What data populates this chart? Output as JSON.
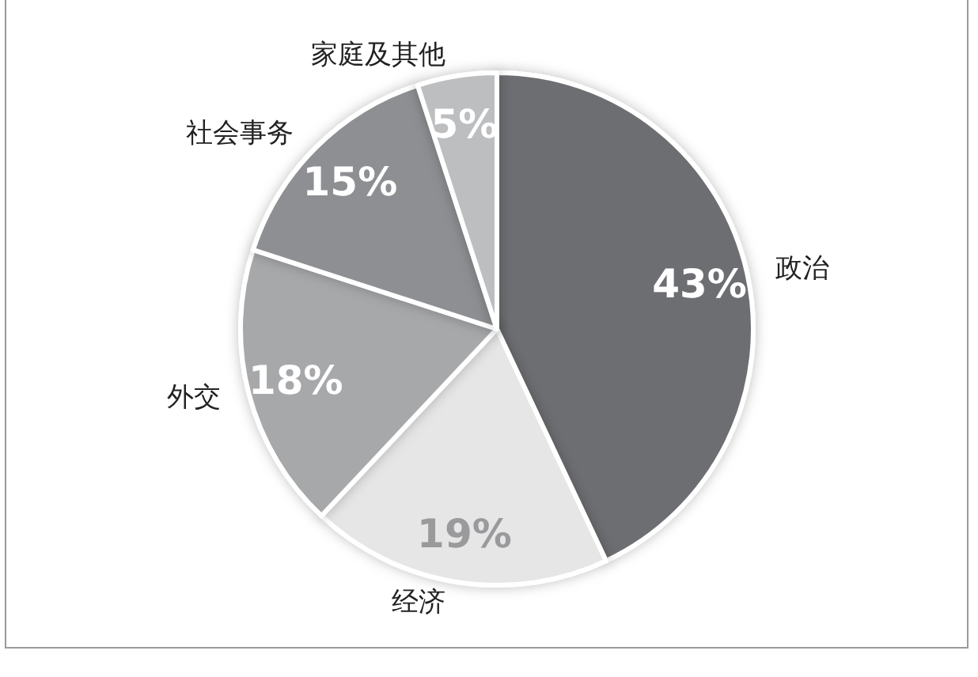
{
  "chart_data": {
    "type": "pie",
    "categories": [
      "政治",
      "经济",
      "外交",
      "社会事务",
      "家庭及其他"
    ],
    "values": [
      43,
      19,
      18,
      15,
      5
    ],
    "colors": [
      "#6d6e71",
      "#e6e6e7",
      "#a7a8aa",
      "#8e8f92",
      "#bdbec0"
    ],
    "value_labels": [
      "43%",
      "19%",
      "18%",
      "15%",
      "5%"
    ]
  }
}
